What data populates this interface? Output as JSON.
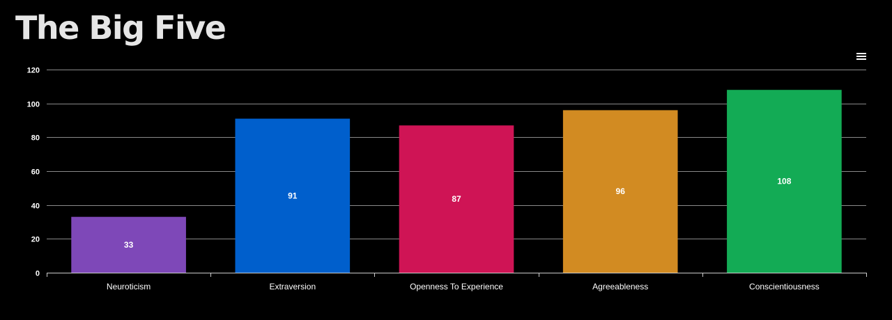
{
  "title": "The Big Five",
  "menu_icon": "hamburger-menu-icon",
  "chart_data": {
    "type": "bar",
    "title": "The Big Five",
    "categories": [
      "Neuroticism",
      "Extraversion",
      "Openness To Experience",
      "Agreeableness",
      "Conscientiousness"
    ],
    "values": [
      33,
      91,
      87,
      96,
      108
    ],
    "data_labels": [
      "33",
      "91",
      "87",
      "96",
      "108"
    ],
    "colors": [
      "#7e48b8",
      "#005fcc",
      "#cf1455",
      "#d28b22",
      "#13ab55"
    ],
    "ylim": [
      0,
      120
    ],
    "yticks": [
      0,
      20,
      40,
      60,
      80,
      100,
      120
    ],
    "ytick_labels": [
      "0",
      "20",
      "40",
      "60",
      "80",
      "100",
      "120"
    ],
    "xlabel": "",
    "ylabel": "",
    "grid": true,
    "legend": false,
    "background": "#000000"
  }
}
